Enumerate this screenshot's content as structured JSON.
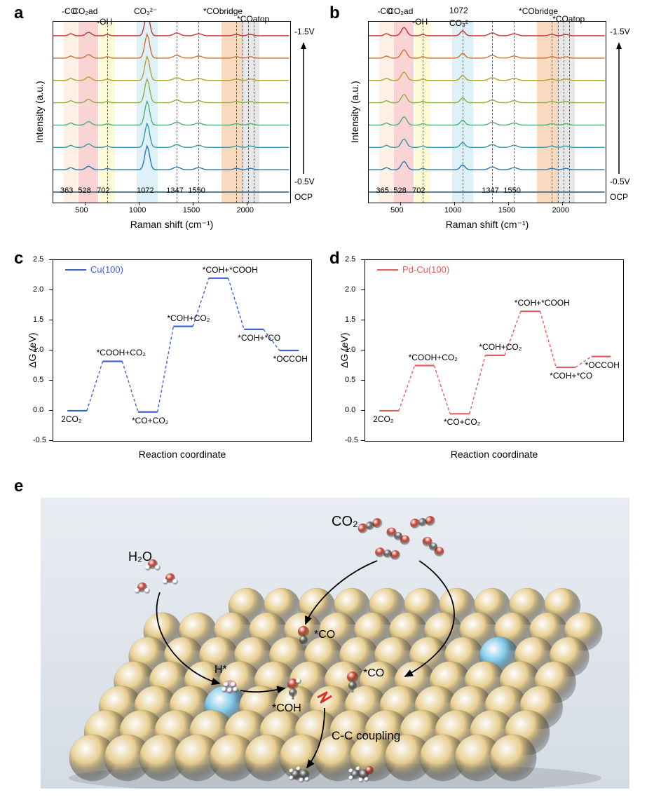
{
  "panels": {
    "a": "a",
    "b": "b",
    "c": "c",
    "d": "d",
    "e": "e"
  },
  "raman": {
    "xlabel": "Raman shift (cm⁻¹)",
    "ylabel": "Intensity (a.u.)",
    "xlim": [
      200,
      2400
    ],
    "xticks": [
      500,
      1000,
      1500,
      2000
    ],
    "volt_top": "-1.5V",
    "volt_bot": "-0.5V",
    "ocp": "OCP",
    "trace_colors": [
      "#c83232",
      "#d07030",
      "#b4a030",
      "#88b040",
      "#4db070",
      "#3498a8",
      "#2878b0",
      "#1e5e88"
    ],
    "labels_a": {
      "co": {
        "text": "-CO",
        "x": 363
      },
      "co2ad": {
        "text": "CO₂ad",
        "x": 528
      },
      "oh": {
        "text": "-OH",
        "x": 702
      },
      "co3": {
        "text": "CO₃²⁻",
        "x": 1072
      },
      "p1347": {
        "text": "1347",
        "x": 1347
      },
      "p1550": {
        "text": "1550",
        "x": 1550
      },
      "bridge": {
        "text": "*CObridge",
        "x": 1860
      },
      "atop": {
        "text": "*COatop",
        "x": 2030
      }
    },
    "labels_b": {
      "co": {
        "text": "-CO",
        "x": 365
      },
      "co2ad": {
        "text": "CO₂ad",
        "x": 528
      },
      "oh": {
        "text": "-OH",
        "x": 702
      },
      "c1072": {
        "text": "1072",
        "x": 1072
      },
      "co3": {
        "text": "CO₃²⁻",
        "x": 1072
      },
      "p1347": {
        "text": "1347",
        "x": 1347
      },
      "p1550": {
        "text": "1550",
        "x": 1550
      },
      "bridge": {
        "text": "*CObridge",
        "x": 1860
      },
      "atop": {
        "text": "*COatop",
        "x": 2030
      }
    },
    "band_colors": {
      "co": "#fde2cc",
      "co2ad": "#f5aaaa",
      "oh": "#fcf5b0",
      "co3": "#bfe3f2",
      "bridge": "#f5b680",
      "atop": "#cfcfcf"
    },
    "bottom_nums_a": [
      "363",
      "528",
      "702",
      "1072",
      "1347",
      "1550"
    ],
    "bottom_nums_b": [
      "365",
      "528",
      "702",
      "1347",
      "1550"
    ]
  },
  "energy": {
    "xlabel": "Reaction coordinate",
    "ylabel": "ΔG (eV)",
    "ylim": [
      -0.5,
      2.5
    ],
    "yticks": [
      -0.5,
      0.0,
      0.5,
      1.0,
      1.5,
      2.0,
      2.5
    ],
    "c": {
      "legend": "Cu(100)",
      "color": "#4060d0",
      "steps": [
        {
          "label": "2CO₂",
          "y": 0.0
        },
        {
          "label": "*COOH+CO₂",
          "y": 0.82
        },
        {
          "label": "*CO+CO₂",
          "y": -0.02
        },
        {
          "label": "*COH+CO₂",
          "y": 1.4
        },
        {
          "label": "*COH+*COOH",
          "y": 2.2
        },
        {
          "label": "*COH+*CO",
          "y": 1.35
        },
        {
          "label": "*OCCOH",
          "y": 1.0
        }
      ]
    },
    "d": {
      "legend": "Pd-Cu(100)",
      "color": "#e06060",
      "steps": [
        {
          "label": "2CO₂",
          "y": 0.0
        },
        {
          "label": "*COOH+CO₂",
          "y": 0.75
        },
        {
          "label": "*CO+CO₂",
          "y": -0.05
        },
        {
          "label": "*COH+CO₂",
          "y": 0.92
        },
        {
          "label": "*COH+*COOH",
          "y": 1.65
        },
        {
          "label": "*COH+*CO",
          "y": 0.72
        },
        {
          "label": "*OCCOH",
          "y": 0.9
        }
      ]
    }
  },
  "schematic": {
    "co2": "CO₂",
    "h2o": "H₂O",
    "h": "H*",
    "co": "*CO",
    "coh": "*COH",
    "coupling": "C-C coupling",
    "atom_colors": {
      "cu": "#e8ce8f",
      "pd": "#7ec8e8",
      "o": "#d04030",
      "c": "#666666",
      "h": "#ffffff"
    },
    "bg": "#e0e6ec"
  }
}
